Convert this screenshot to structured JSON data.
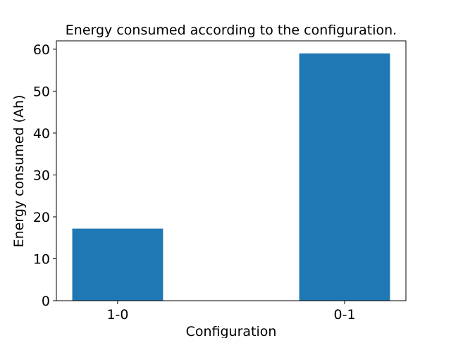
{
  "chart_data": {
    "type": "bar",
    "title": "Energy consumed according to the configuration.",
    "xlabel": "Configuration",
    "ylabel": "Energy consumed (Ah)",
    "categories": [
      "1-0",
      "0-1"
    ],
    "values": [
      17.2,
      59.0
    ],
    "ylim": [
      0,
      62
    ],
    "yticks": [
      0,
      10,
      20,
      30,
      40,
      50,
      60
    ],
    "grid": false,
    "legend": "none",
    "bar_color": "#1f77b4"
  }
}
